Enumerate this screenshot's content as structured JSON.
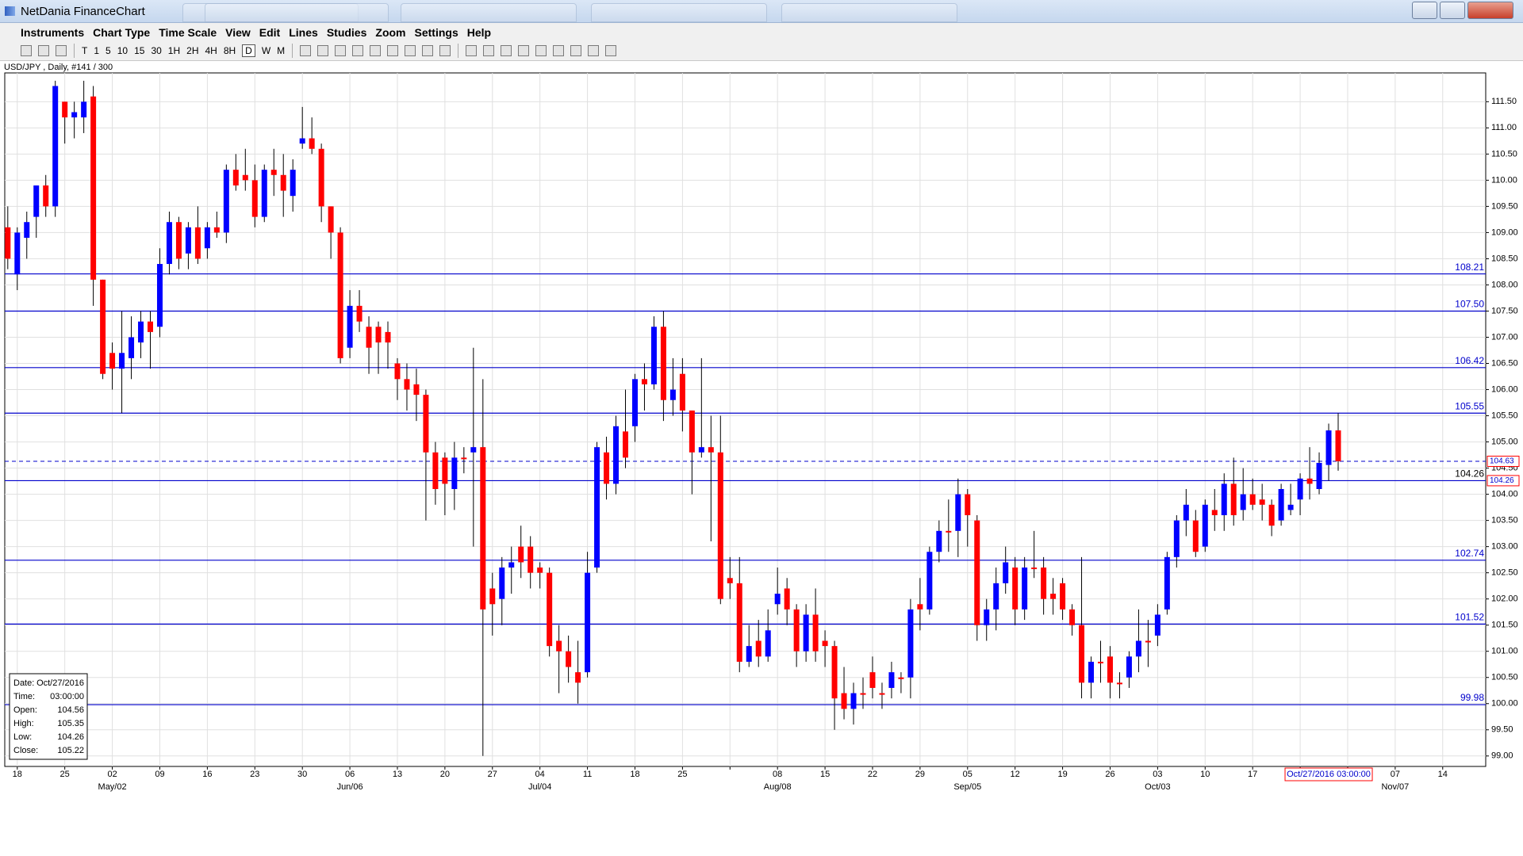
{
  "window": {
    "title": "NetDania FinanceChart"
  },
  "menu": [
    "Instruments",
    "Chart Type",
    "Time Scale",
    "View",
    "Edit",
    "Lines",
    "Studies",
    "Zoom",
    "Settings",
    "Help"
  ],
  "toolbar": {
    "timescales": [
      "T",
      "1",
      "5",
      "10",
      "15",
      "30",
      "1H",
      "2H",
      "4H",
      "8H",
      "D",
      "W",
      "M"
    ],
    "selected": "D"
  },
  "chart_data": {
    "type": "candlestick",
    "title": "USD/JPY , Daily, #141 / 300",
    "week_labels": [
      "18",
      "25",
      "02",
      "09",
      "16",
      "23",
      "30",
      "06",
      "13",
      "20",
      "27",
      "04",
      "11",
      "18",
      "25",
      null,
      "08",
      "15",
      "22",
      "29",
      "05",
      "12",
      "19",
      "26",
      "03",
      "10",
      "17",
      null,
      null,
      "07",
      "14"
    ],
    "month_labels": [
      null,
      null,
      "May/02",
      null,
      null,
      null,
      null,
      "Jun/06",
      null,
      null,
      null,
      "Jul/04",
      null,
      null,
      null,
      null,
      "Aug/08",
      null,
      null,
      null,
      "Sep/05",
      null,
      null,
      null,
      "Oct/03",
      null,
      null,
      null,
      null,
      "Nov/07",
      null
    ],
    "open": [
      109.1,
      108.2,
      108.9,
      109.3,
      109.9,
      109.5,
      111.5,
      111.2,
      111.2,
      111.6,
      108.1,
      106.7,
      106.4,
      106.6,
      106.9,
      107.3,
      107.2,
      108.4,
      109.2,
      108.6,
      109.1,
      108.7,
      109.1,
      109.0,
      110.2,
      110.1,
      110.0,
      109.3,
      110.2,
      110.1,
      109.7,
      110.7,
      110.8,
      110.6,
      109.5,
      109.0,
      106.8,
      107.6,
      107.2,
      107.2,
      107.1,
      106.5,
      106.2,
      106.1,
      105.9,
      104.8,
      104.7,
      104.1,
      104.7,
      104.8,
      104.9,
      102.2,
      102.0,
      102.6,
      103.0,
      103.0,
      102.6,
      102.5,
      101.2,
      101.0,
      100.6,
      100.6,
      102.6,
      104.8,
      104.2,
      105.2,
      105.3,
      106.2,
      106.1,
      107.2,
      105.8,
      106.3,
      105.6,
      104.8,
      104.9,
      104.8,
      102.4,
      102.3,
      100.8,
      101.2,
      100.9,
      101.9,
      102.2,
      101.8,
      101.0,
      101.7,
      101.2,
      101.1,
      100.2,
      99.9,
      100.2,
      100.6,
      100.2,
      100.3,
      100.5,
      100.5,
      101.9,
      101.8,
      102.9,
      103.3,
      103.3,
      104.0,
      103.5,
      101.5,
      101.8,
      102.3,
      102.6,
      101.8,
      102.6,
      102.6,
      102.1,
      102.3,
      101.8,
      101.5,
      100.4,
      100.8,
      100.9,
      100.4,
      100.5,
      100.9,
      101.2,
      101.3,
      101.8,
      102.8,
      103.5,
      103.5,
      103.0,
      103.7,
      103.6,
      104.2,
      103.7,
      104.0,
      103.9,
      103.8,
      103.5,
      103.7,
      103.9,
      104.3,
      104.1,
      104.56,
      105.22
    ],
    "high": [
      109.5,
      109.1,
      109.4,
      109.9,
      110.1,
      111.9,
      111.5,
      111.5,
      111.9,
      111.8,
      108.1,
      106.9,
      107.5,
      107.4,
      107.5,
      107.5,
      108.7,
      109.4,
      109.3,
      109.2,
      109.5,
      109.2,
      109.4,
      110.3,
      110.5,
      110.6,
      110.3,
      110.3,
      110.6,
      110.5,
      110.4,
      111.4,
      111.2,
      110.7,
      109.5,
      109.1,
      107.9,
      107.9,
      107.4,
      107.3,
      107.3,
      106.6,
      106.5,
      106.4,
      106.0,
      105.0,
      104.8,
      105.0,
      104.9,
      106.8,
      106.2,
      102.5,
      102.8,
      103.0,
      103.4,
      103.2,
      102.7,
      102.6,
      101.5,
      101.3,
      101.2,
      102.9,
      105.0,
      105.1,
      105.5,
      106.0,
      106.3,
      106.5,
      107.4,
      107.5,
      106.6,
      106.6,
      105.6,
      106.6,
      105.5,
      105.5,
      102.8,
      102.8,
      101.5,
      101.6,
      101.8,
      102.6,
      102.4,
      101.9,
      101.9,
      102.2,
      101.4,
      101.2,
      100.7,
      100.4,
      100.5,
      100.9,
      100.4,
      100.8,
      100.6,
      102.0,
      102.4,
      103.0,
      103.5,
      103.9,
      104.3,
      104.1,
      103.6,
      102.0,
      102.6,
      103.0,
      102.8,
      102.8,
      103.3,
      102.8,
      102.4,
      102.4,
      101.9,
      102.8,
      100.9,
      101.2,
      101.1,
      100.6,
      101.0,
      101.8,
      101.6,
      101.9,
      102.9,
      103.6,
      104.1,
      103.7,
      103.9,
      104.1,
      104.4,
      104.7,
      104.5,
      104.3,
      104.2,
      103.9,
      104.2,
      104.2,
      104.4,
      104.9,
      104.8,
      105.35,
      105.55
    ],
    "low": [
      108.3,
      107.9,
      108.5,
      108.9,
      109.3,
      109.3,
      110.7,
      110.8,
      110.9,
      107.6,
      106.2,
      106.0,
      105.55,
      106.2,
      106.6,
      106.4,
      107.0,
      108.2,
      108.3,
      108.3,
      108.4,
      108.5,
      108.9,
      108.8,
      109.8,
      109.8,
      109.1,
      109.2,
      109.7,
      109.3,
      109.4,
      110.6,
      110.5,
      109.2,
      108.5,
      106.5,
      106.6,
      107.1,
      106.3,
      106.3,
      106.4,
      105.8,
      105.6,
      105.4,
      103.5,
      103.8,
      103.6,
      103.7,
      104.4,
      103.0,
      99.0,
      101.3,
      101.5,
      102.1,
      102.4,
      102.2,
      102.2,
      100.9,
      100.2,
      100.4,
      100.0,
      100.5,
      102.5,
      103.9,
      104.0,
      104.5,
      105.0,
      105.6,
      106.0,
      105.4,
      105.5,
      105.2,
      104.0,
      104.7,
      103.1,
      101.9,
      102.0,
      100.6,
      100.7,
      100.7,
      100.8,
      101.7,
      101.5,
      100.7,
      100.8,
      100.8,
      100.7,
      99.5,
      99.7,
      99.6,
      99.9,
      100.1,
      99.9,
      100.1,
      100.2,
      100.1,
      101.4,
      101.7,
      102.7,
      102.9,
      102.8,
      103.0,
      101.2,
      101.2,
      101.4,
      102.1,
      101.5,
      101.6,
      102.4,
      101.7,
      101.7,
      101.6,
      101.3,
      100.1,
      100.1,
      100.4,
      100.1,
      100.1,
      100.3,
      100.6,
      100.7,
      101.1,
      101.7,
      102.6,
      103.2,
      102.8,
      102.9,
      103.3,
      103.3,
      103.4,
      103.5,
      103.7,
      103.5,
      103.2,
      103.4,
      103.6,
      103.6,
      103.9,
      104.0,
      104.26,
      104.45
    ],
    "close": [
      108.5,
      109.0,
      109.2,
      109.9,
      109.5,
      111.8,
      111.2,
      111.3,
      111.5,
      108.1,
      106.3,
      106.4,
      106.7,
      107.0,
      107.3,
      107.1,
      108.4,
      109.2,
      108.5,
      109.1,
      108.5,
      109.1,
      109.0,
      110.2,
      109.9,
      110.0,
      109.3,
      110.2,
      110.1,
      109.8,
      110.2,
      110.8,
      110.6,
      109.5,
      109.0,
      106.6,
      107.6,
      107.3,
      106.8,
      106.9,
      106.9,
      106.2,
      106.0,
      105.9,
      104.8,
      104.1,
      104.2,
      104.7,
      104.7,
      104.9,
      101.8,
      101.9,
      102.6,
      102.7,
      102.7,
      102.5,
      102.5,
      101.1,
      101.0,
      100.7,
      100.4,
      102.5,
      104.9,
      104.2,
      105.3,
      104.7,
      106.2,
      106.1,
      107.2,
      105.8,
      106.0,
      105.6,
      104.8,
      104.9,
      104.8,
      102.0,
      102.3,
      100.8,
      101.1,
      100.9,
      101.4,
      102.1,
      101.8,
      101.0,
      101.7,
      101.0,
      101.1,
      100.1,
      99.9,
      100.2,
      100.2,
      100.3,
      100.2,
      100.6,
      100.5,
      101.8,
      101.8,
      102.9,
      103.3,
      103.3,
      104.0,
      103.6,
      101.5,
      101.8,
      102.3,
      102.7,
      101.8,
      102.6,
      102.6,
      102.0,
      102.0,
      101.8,
      101.5,
      100.4,
      100.8,
      100.8,
      100.4,
      100.4,
      100.9,
      101.2,
      101.2,
      101.7,
      102.8,
      103.5,
      103.8,
      102.9,
      103.8,
      103.6,
      104.2,
      103.6,
      104.0,
      103.8,
      103.8,
      103.4,
      104.1,
      103.8,
      104.3,
      104.2,
      104.6,
      105.22,
      104.63
    ],
    "up_color": "#0000ff",
    "down_color": "#ff0000",
    "ylim": [
      98.8,
      112.05
    ],
    "yticks": [
      {
        "value": 99,
        "label": "99.00"
      },
      {
        "value": 99.5,
        "label": "99.50"
      },
      {
        "value": 100,
        "label": "100.00"
      },
      {
        "value": 100.5,
        "label": "100.50"
      },
      {
        "value": 101,
        "label": "101.00"
      },
      {
        "value": 101.5,
        "label": "101.50"
      },
      {
        "value": 102,
        "label": "102.00"
      },
      {
        "value": 102.5,
        "label": "102.50"
      },
      {
        "value": 103,
        "label": "103.00"
      },
      {
        "value": 103.5,
        "label": "103.50"
      },
      {
        "value": 104,
        "label": "104.00"
      },
      {
        "value": 104.5,
        "label": "104.50"
      },
      {
        "value": 105,
        "label": "105.00"
      },
      {
        "value": 105.5,
        "label": "105.50"
      },
      {
        "value": 106,
        "label": "106.00"
      },
      {
        "value": 106.5,
        "label": "106.50"
      },
      {
        "value": 107,
        "label": "107.00"
      },
      {
        "value": 107.5,
        "label": "107.50"
      },
      {
        "value": 108,
        "label": "108.00"
      },
      {
        "value": 108.5,
        "label": "108.50"
      },
      {
        "value": 109,
        "label": "109.00"
      },
      {
        "value": 109.5,
        "label": "109.50"
      },
      {
        "value": 110,
        "label": "110.00"
      },
      {
        "value": 110.5,
        "label": "110.50"
      },
      {
        "value": 111,
        "label": "111.00"
      },
      {
        "value": 111.5,
        "label": "111.50"
      }
    ],
    "grid": true,
    "levels": [
      {
        "value": 108.21,
        "label": "108.21"
      },
      {
        "value": 107.5,
        "label": "107.50"
      },
      {
        "value": 106.42,
        "label": "106.42"
      },
      {
        "value": 105.55,
        "label": "105.55"
      },
      {
        "value": 104.26,
        "label": "104.26",
        "label_color": "#000000"
      },
      {
        "value": 102.74,
        "label": "102.74"
      },
      {
        "value": 101.52,
        "label": "101.52"
      },
      {
        "value": 99.98,
        "label": "99.98"
      }
    ],
    "level_color": "#0000cc",
    "current_price": 104.63,
    "axis_markers": [
      {
        "value": 104.63,
        "label": "104.63"
      },
      {
        "value": 104.26,
        "label": "104.26"
      }
    ],
    "cursor_label": "Oct/27/2016 03:00:00",
    "info": [
      {
        "label": "Date:",
        "value": "Oct/27/2016"
      },
      {
        "label": "Time:",
        "value": "03:00:00"
      },
      {
        "label": "Open:",
        "value": 104.56
      },
      {
        "label": "High:",
        "value": 105.35
      },
      {
        "label": "Low:",
        "value": 104.26
      },
      {
        "label": "Close:",
        "value": 105.22
      }
    ]
  }
}
